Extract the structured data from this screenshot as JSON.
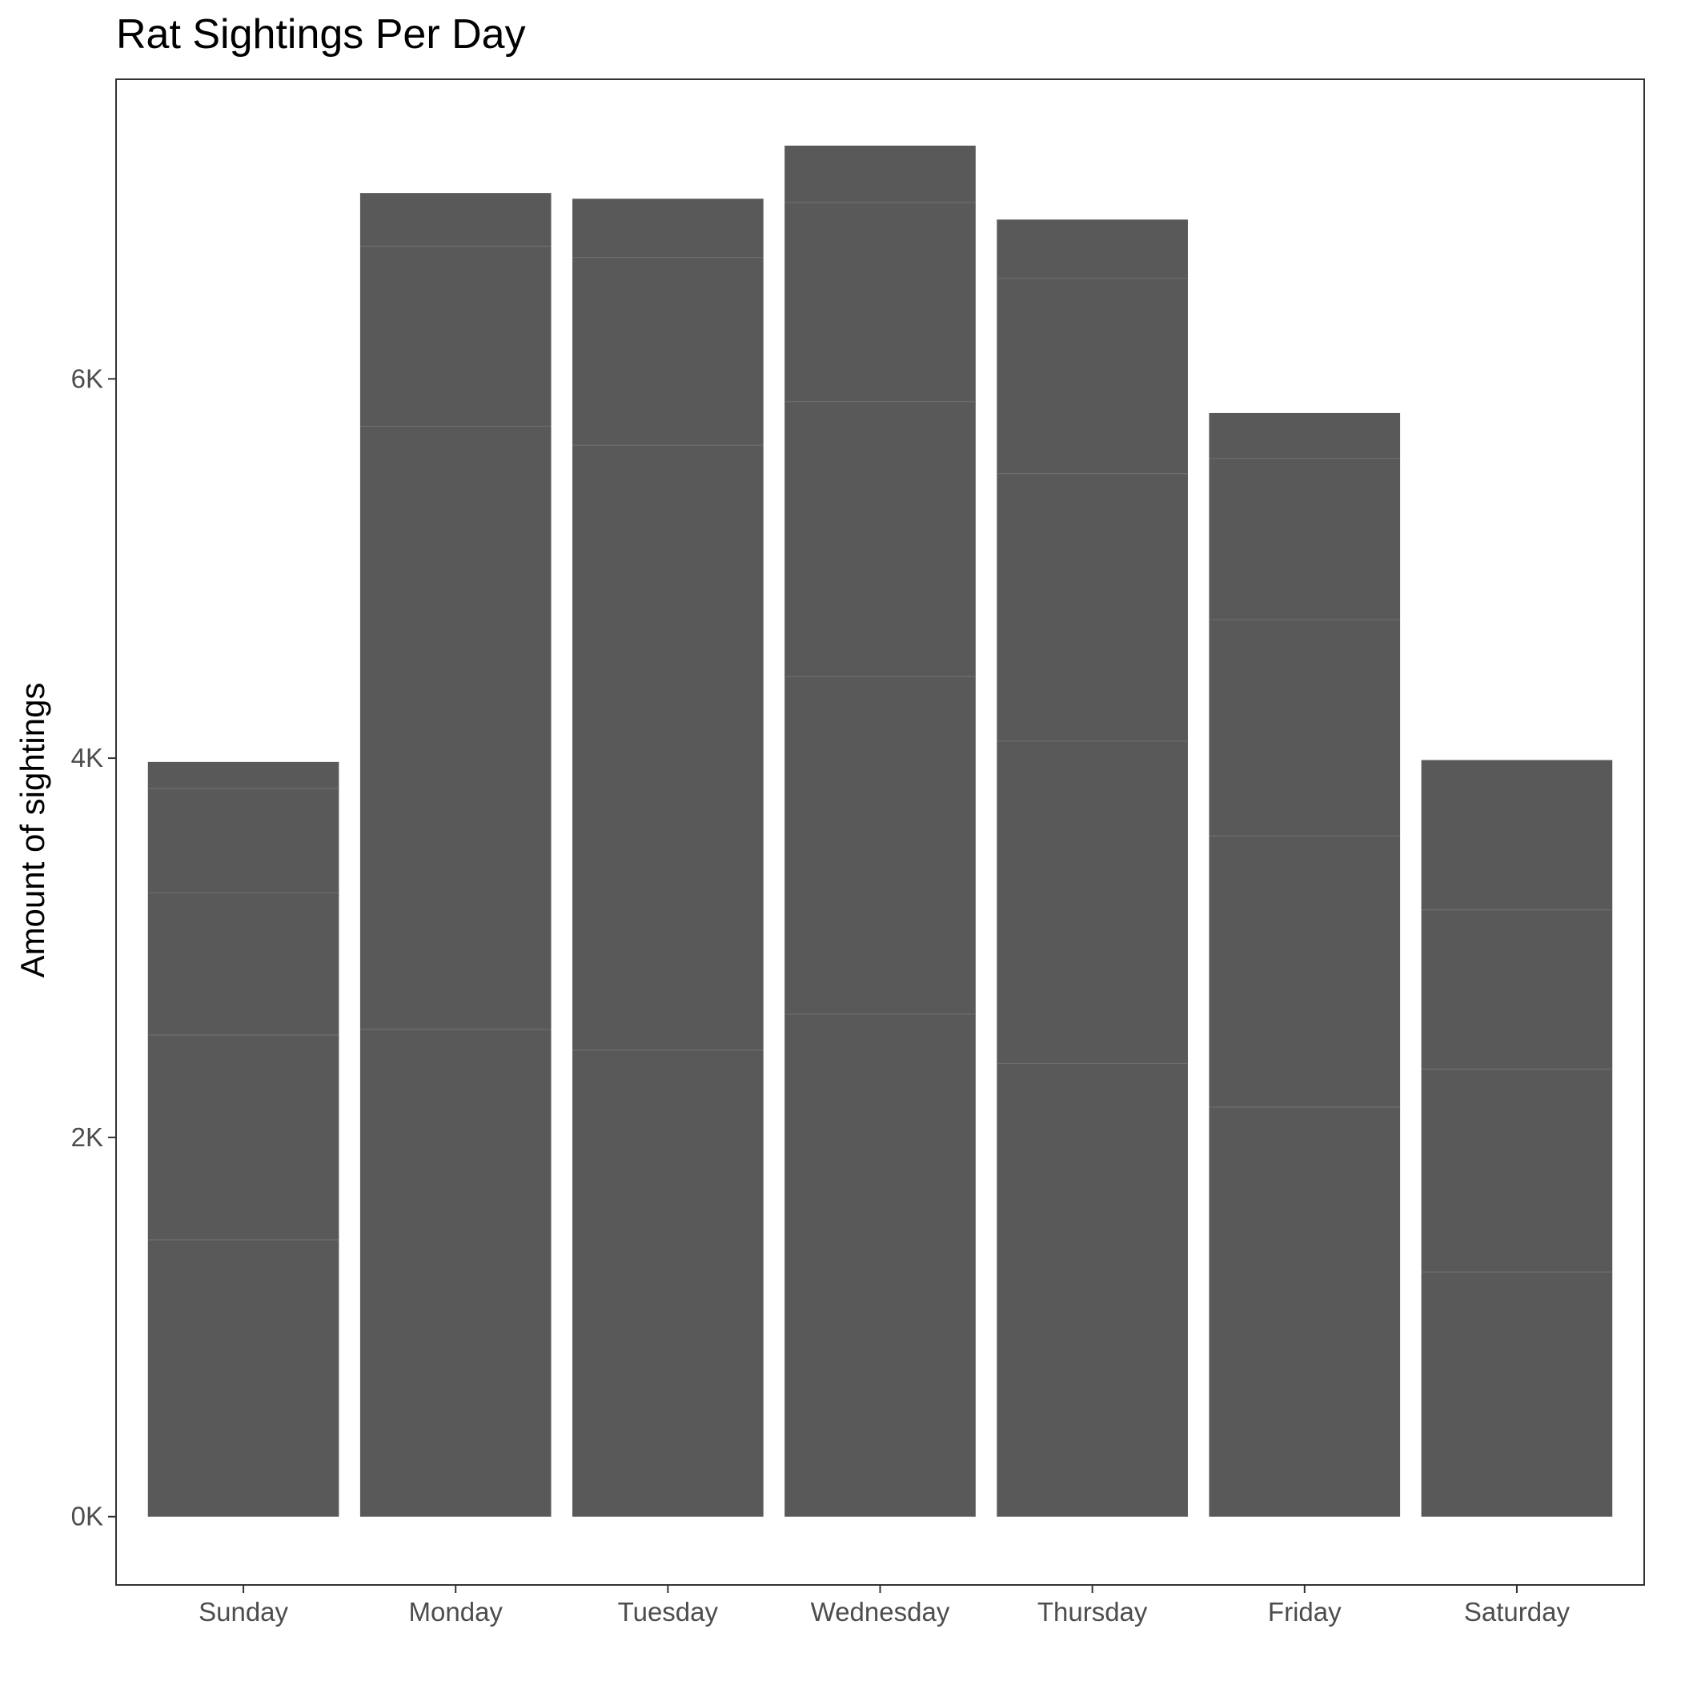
{
  "chart_data": {
    "type": "bar",
    "stacked": true,
    "title": "Rat Sightings Per Day",
    "xlabel": "",
    "ylabel": "Amount of sightings",
    "categories": [
      "Sunday",
      "Monday",
      "Tuesday",
      "Wednesday",
      "Thursday",
      "Friday",
      "Saturday"
    ],
    "y_ticks": [
      {
        "value": 0,
        "label": "0K"
      },
      {
        "value": 2000,
        "label": "2K"
      },
      {
        "value": 4000,
        "label": "4K"
      },
      {
        "value": 6000,
        "label": "6K"
      }
    ],
    "ylim": [
      -360,
      7580
    ],
    "grid": false,
    "legend": "none",
    "bar_color": "#595959",
    "segment_line_color": "#6e6e6e",
    "stack_boundaries": [
      [
        0,
        1460,
        2540,
        3290,
        3840,
        3980
      ],
      [
        0,
        2570,
        5750,
        6700,
        6980
      ],
      [
        0,
        2460,
        5650,
        6640,
        6950
      ],
      [
        0,
        2650,
        4430,
        5880,
        6930,
        7230
      ],
      [
        0,
        2390,
        4090,
        5500,
        6530,
        6840
      ],
      [
        0,
        2160,
        3590,
        4730,
        5580,
        5820
      ],
      [
        0,
        1290,
        2360,
        3200,
        3990
      ]
    ],
    "totals": [
      3980,
      6980,
      6950,
      7230,
      6840,
      5820,
      3990
    ]
  }
}
